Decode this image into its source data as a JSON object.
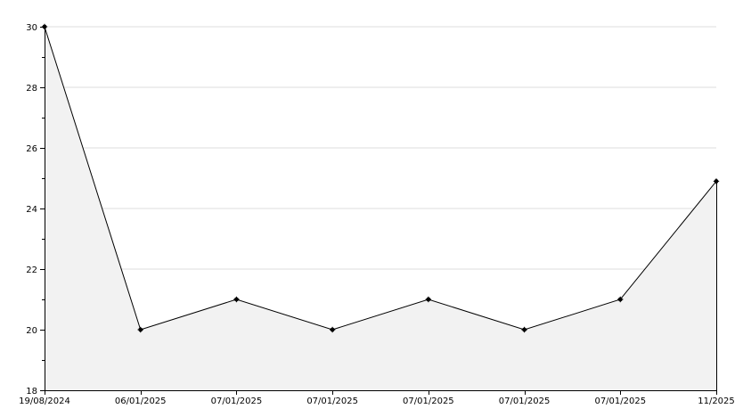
{
  "chart_data": {
    "type": "area",
    "title": "",
    "xlabel": "",
    "ylabel": "",
    "x_labels": [
      "19/08/2024",
      "06/01/2025",
      "07/01/2025",
      "07/01/2025",
      "07/01/2025",
      "07/01/2025",
      "07/01/2025",
      "11/2025"
    ],
    "values": [
      30,
      20,
      21,
      20,
      21,
      20,
      21,
      24.9
    ],
    "ylim": [
      18,
      30
    ],
    "y_ticks": [
      "18",
      "20",
      "22",
      "24",
      "26",
      "28",
      "30"
    ],
    "grid": true,
    "legend": "none",
    "colors": {
      "line": "#000000",
      "fill": "#f2f2f2",
      "grid": "#dddddd",
      "axis": "#000000",
      "marker": "#000000"
    }
  }
}
